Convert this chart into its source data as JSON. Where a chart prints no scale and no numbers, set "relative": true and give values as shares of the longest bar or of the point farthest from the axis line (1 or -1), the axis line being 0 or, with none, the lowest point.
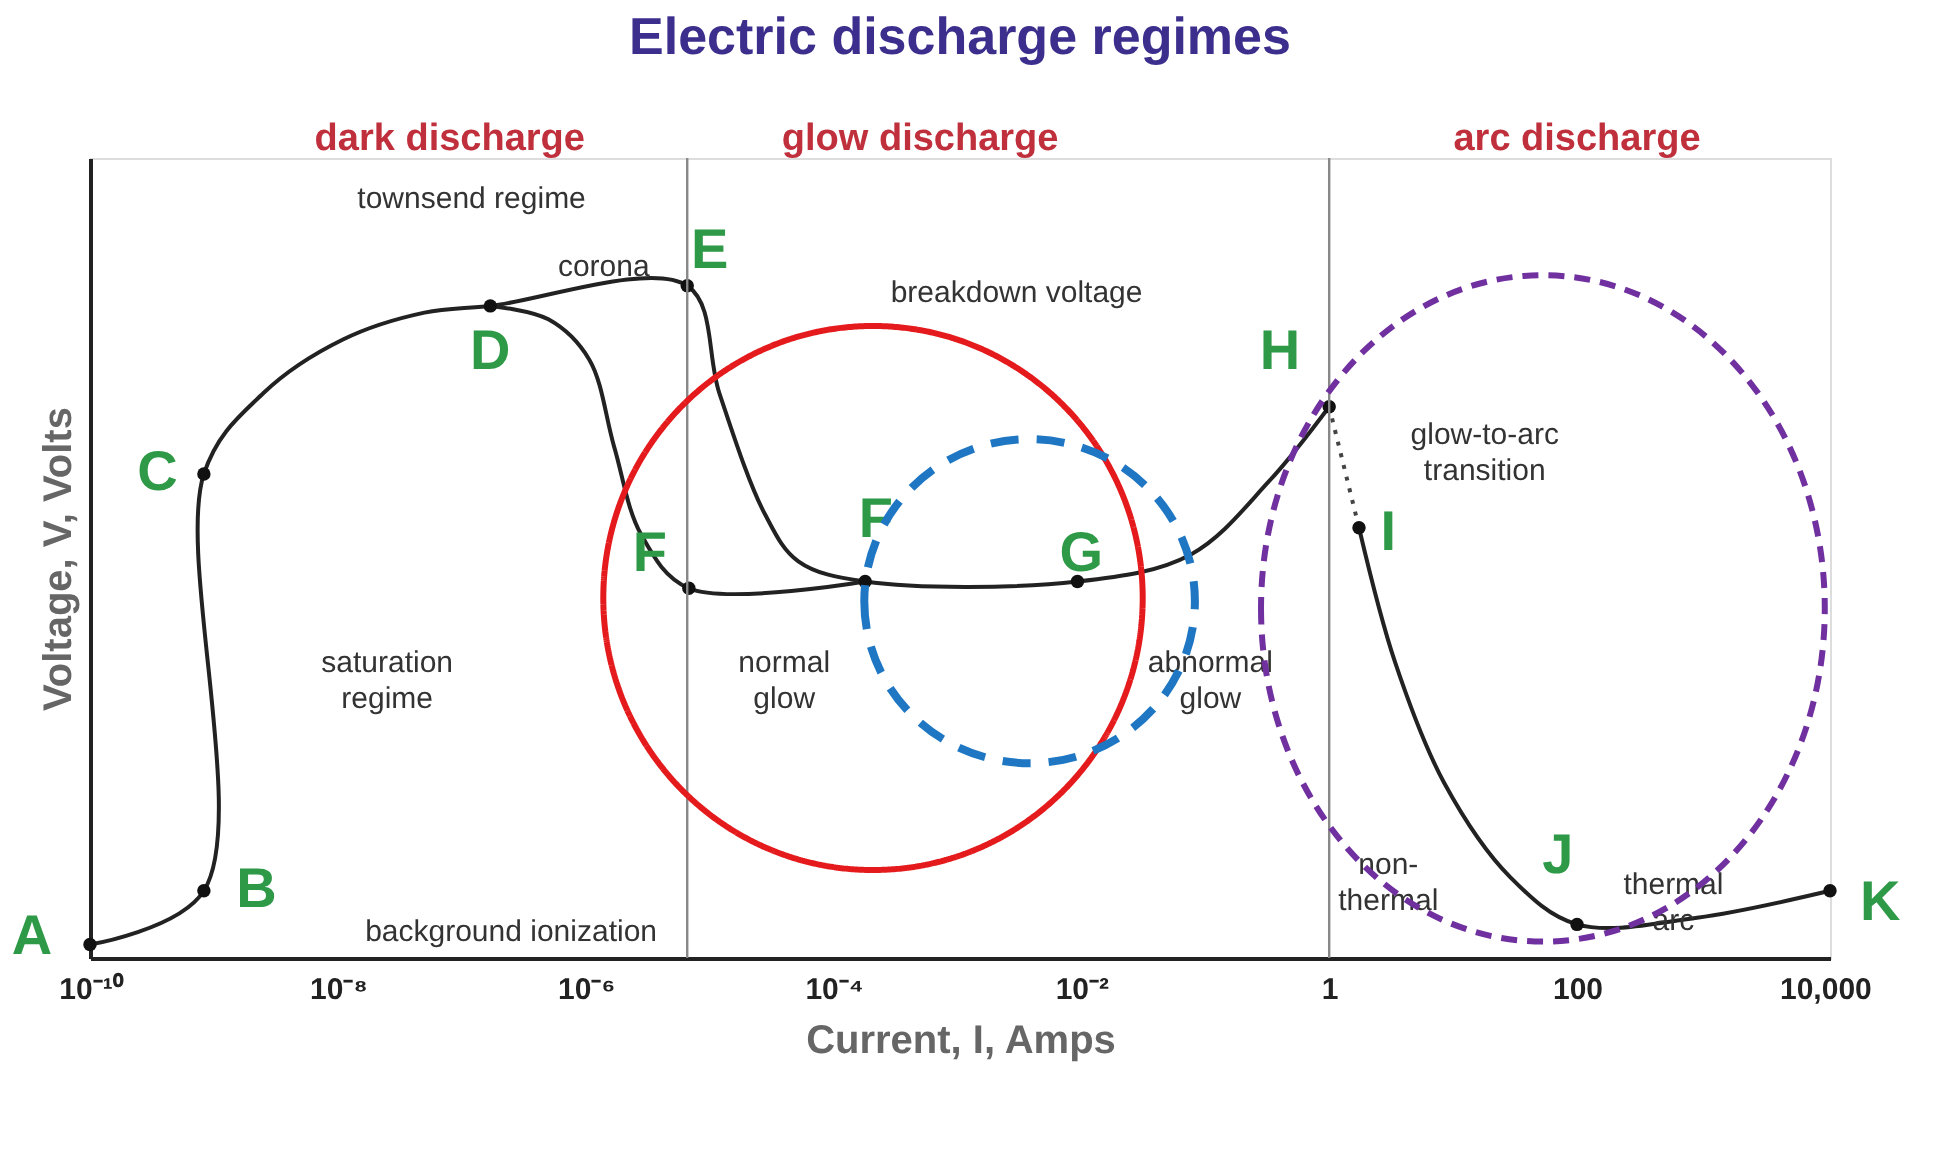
{
  "chart_data": {
    "type": "line",
    "title": "Electric discharge regimes",
    "xlabel": "Current, I, Amps",
    "ylabel": "Voltage, V, Volts",
    "relative": true,
    "log": "x",
    "grid": false,
    "marker": "none",
    "xlim": [
      1e-10,
      11000
    ],
    "xticks": [
      {
        "value": 1e-10,
        "label": "10⁻¹⁰"
      },
      {
        "value": 1e-08,
        "label": "10⁻⁸"
      },
      {
        "value": 1e-06,
        "label": "10⁻⁶"
      },
      {
        "value": 0.0001,
        "label": "10⁻⁴"
      },
      {
        "value": 0.01,
        "label": "10⁻²"
      },
      1,
      100,
      {
        "value": 10000,
        "label": "10,000"
      }
    ],
    "series": [
      {
        "color": "#222222",
        "line_style": "solid",
        "x": [
          1e-10,
          8.3e-10,
          8.3e-10,
          2.5e-09,
          1.1e-08,
          5e-08,
          1.7e-07,
          6.6e-06,
          1.2e-05,
          2.8e-05,
          5.2e-05,
          0.00018,
          0.0093,
          0.076,
          0.33,
          1
        ],
        "values": [
          0.02,
          0.1,
          0.72,
          0.84,
          0.92,
          0.96,
          0.97,
          1.0,
          0.84,
          0.66,
          0.59,
          0.56,
          0.56,
          0.6,
          0.71,
          0.82
        ]
      },
      {
        "color": "#222222",
        "line_style": "solid",
        "x": [
          1.7e-07,
          5e-07,
          1.07e-06,
          1.7e-06,
          2.8e-06,
          6.8e-06,
          0.00018
        ],
        "values": [
          0.97,
          0.95,
          0.89,
          0.76,
          0.63,
          0.55,
          0.56
        ]
      },
      {
        "color": "#444444",
        "line_style": "dotted",
        "x": [
          1,
          1.74
        ],
        "values": [
          0.82,
          0.64
        ]
      },
      {
        "color": "#222222",
        "line_style": "solid",
        "x": [
          1.74,
          3.4,
          8.5,
          29,
          100,
          930,
          11000
        ],
        "values": [
          0.64,
          0.44,
          0.26,
          0.12,
          0.05,
          0.06,
          0.1
        ]
      },
      {
        "type": "scatter",
        "color": "#111111",
        "marker": "circle",
        "x": [
          1e-10,
          8.3e-10,
          8.3e-10,
          1.7e-07,
          6.6e-06,
          6.8e-06,
          0.00018,
          0.0093,
          1,
          1.74,
          100,
          11000
        ],
        "values": [
          0.02,
          0.1,
          0.72,
          0.97,
          1.0,
          0.55,
          0.56,
          0.56,
          0.82,
          0.64,
          0.05,
          0.1
        ]
      }
    ],
    "ref_lines": [
      {
        "axis": "x",
        "value": 6.6e-06,
        "color": "#888888"
      },
      {
        "axis": "x",
        "value": 1,
        "color": "#888888"
      }
    ],
    "annotations": [
      "A",
      "B",
      "C",
      "D",
      "E",
      "F",
      "F",
      "G",
      "H",
      "I",
      "J",
      "K",
      "dark discharge",
      "glow discharge",
      "arc discharge",
      "townsend regime",
      "corona",
      "breakdown voltage",
      "saturation\nregime",
      "background ionization",
      "normal\nglow",
      "abnormal\nglow",
      "glow-to-arc\ntransition",
      "non-\nthermal",
      "thermal\narc"
    ]
  }
}
